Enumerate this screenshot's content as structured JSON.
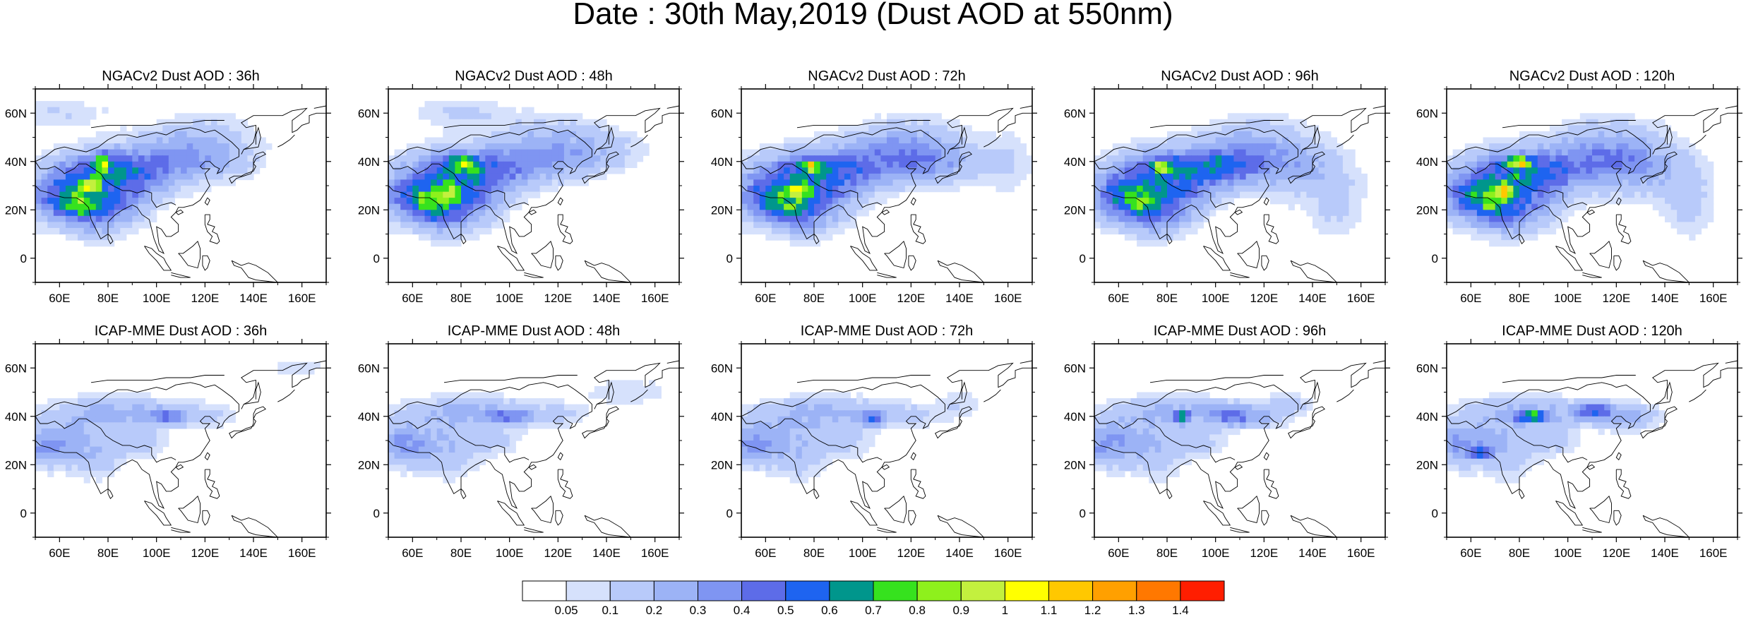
{
  "figure": {
    "title": "Date : 30th May,2019 (Dust AOD at 550nm)"
  },
  "panels": [
    {
      "title": "NGACv2 Dust AOD : 36h",
      "model": "NGACv2",
      "lead": "36h"
    },
    {
      "title": "NGACv2 Dust AOD : 48h",
      "model": "NGACv2",
      "lead": "48h"
    },
    {
      "title": "NGACv2 Dust AOD : 72h",
      "model": "NGACv2",
      "lead": "72h"
    },
    {
      "title": "NGACv2 Dust AOD : 96h",
      "model": "NGACv2",
      "lead": "96h"
    },
    {
      "title": "NGACv2 Dust AOD : 120h",
      "model": "NGACv2",
      "lead": "120h"
    },
    {
      "title": "ICAP-MME Dust AOD : 36h",
      "model": "ICAP-MME",
      "lead": "36h"
    },
    {
      "title": "ICAP-MME Dust AOD : 48h",
      "model": "ICAP-MME",
      "lead": "48h"
    },
    {
      "title": "ICAP-MME Dust AOD : 72h",
      "model": "ICAP-MME",
      "lead": "72h"
    },
    {
      "title": "ICAP-MME Dust AOD : 96h",
      "model": "ICAP-MME",
      "lead": "96h"
    },
    {
      "title": "ICAP-MME Dust AOD : 120h",
      "model": "ICAP-MME",
      "lead": "120h"
    }
  ],
  "axes": {
    "lon_range": [
      50,
      170
    ],
    "lat_range": [
      -10,
      70
    ],
    "lon_ticks": [
      "60E",
      "80E",
      "100E",
      "120E",
      "140E",
      "160E"
    ],
    "lon_tick_values": [
      60,
      80,
      100,
      120,
      140,
      160
    ],
    "lat_ticks": [
      "0",
      "20N",
      "40N",
      "60N"
    ],
    "lat_tick_values": [
      0,
      20,
      40,
      60
    ]
  },
  "colorbar": {
    "labels": [
      "0.05",
      "0.1",
      "0.2",
      "0.3",
      "0.4",
      "0.5",
      "0.6",
      "0.7",
      "0.8",
      "0.9",
      "1",
      "1.1",
      "1.2",
      "1.3",
      "1.4"
    ],
    "colors": [
      "#ffffff",
      "#d6e1fc",
      "#b8cafa",
      "#9cb3f6",
      "#7f95f2",
      "#5d6ce8",
      "#1e64f0",
      "#00968c",
      "#36e21e",
      "#8ef01c",
      "#c3f03e",
      "#ffff00",
      "#ffc800",
      "#ffa000",
      "#ff7800",
      "#ff1e00"
    ]
  },
  "colors": {
    "background": "#ffffff",
    "ocean": "#ffffff",
    "coastline": "#000000"
  }
}
